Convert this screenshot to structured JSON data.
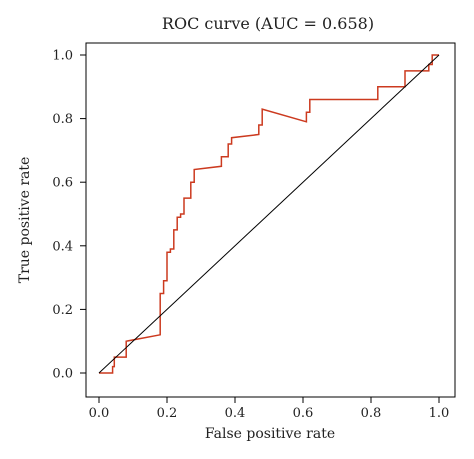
{
  "chart_data": {
    "type": "line",
    "title": "ROC curve (AUC = 0.658)",
    "xlabel": "False positive rate",
    "ylabel": "True positive rate",
    "xlim": [
      0,
      1
    ],
    "ylim": [
      0,
      1
    ],
    "x_ticks": [
      "0.0",
      "0.2",
      "0.4",
      "0.6",
      "0.8",
      "1.0"
    ],
    "y_ticks": [
      "0.0",
      "0.2",
      "0.4",
      "0.6",
      "0.8",
      "1.0"
    ],
    "grid": false,
    "legend": "none",
    "series": [
      {
        "color": "#cc3a1f",
        "x": [
          0.0,
          0.04,
          0.04,
          0.045,
          0.045,
          0.08,
          0.08,
          0.18,
          0.18,
          0.19,
          0.19,
          0.2,
          0.2,
          0.21,
          0.21,
          0.22,
          0.22,
          0.23,
          0.23,
          0.24,
          0.24,
          0.25,
          0.25,
          0.27,
          0.27,
          0.28,
          0.28,
          0.36,
          0.36,
          0.38,
          0.38,
          0.39,
          0.39,
          0.47,
          0.47,
          0.48,
          0.48,
          0.61,
          0.61,
          0.62,
          0.62,
          0.72,
          0.72,
          0.82,
          0.82,
          0.9,
          0.9,
          0.97,
          0.97,
          0.98,
          0.98,
          1.0
        ],
        "y": [
          0.0,
          0.0,
          0.02,
          0.02,
          0.05,
          0.05,
          0.1,
          0.12,
          0.25,
          0.25,
          0.29,
          0.29,
          0.38,
          0.38,
          0.39,
          0.39,
          0.45,
          0.45,
          0.49,
          0.49,
          0.5,
          0.5,
          0.55,
          0.55,
          0.6,
          0.6,
          0.64,
          0.65,
          0.68,
          0.68,
          0.72,
          0.72,
          0.74,
          0.75,
          0.78,
          0.78,
          0.83,
          0.79,
          0.82,
          0.82,
          0.86,
          0.86,
          0.86,
          0.86,
          0.9,
          0.9,
          0.95,
          0.95,
          0.97,
          0.97,
          1.0,
          1.0
        ]
      },
      {
        "color": "#000000",
        "x": [
          0,
          1
        ],
        "y": [
          0,
          1
        ]
      }
    ]
  }
}
